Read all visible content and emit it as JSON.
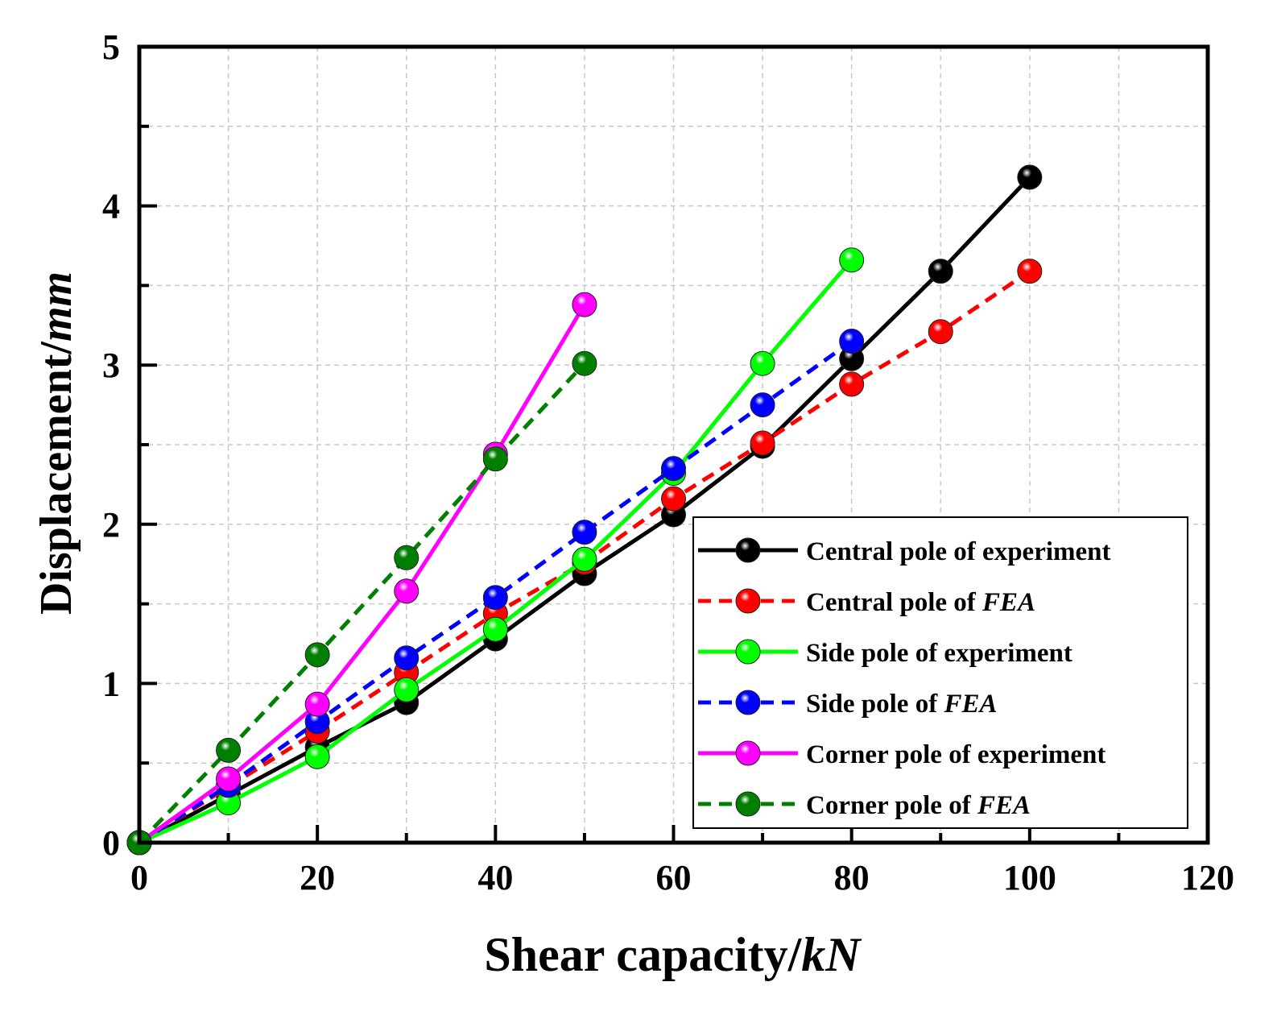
{
  "chart_data": {
    "type": "line",
    "xlabel": {
      "main": "Shear capacity/",
      "italic": "kN"
    },
    "ylabel": {
      "main": "Displacement/",
      "italic": "mm"
    },
    "xlim": [
      0,
      120
    ],
    "ylim": [
      0,
      5
    ],
    "x_ticks": [
      "0",
      "20",
      "40",
      "60",
      "80",
      "100",
      "120"
    ],
    "y_ticks": [
      "0",
      "1",
      "2",
      "3",
      "4",
      "5"
    ],
    "grid": true,
    "legend_position": "bottom-right",
    "series": [
      {
        "name": {
          "main": "Central pole of experiment",
          "italic": ""
        },
        "color": "#000000",
        "dashed": false,
        "x": [
          0,
          10,
          20,
          30,
          40,
          50,
          60,
          70,
          80,
          90,
          100
        ],
        "y": [
          0,
          0.3,
          0.6,
          0.88,
          1.28,
          1.69,
          2.06,
          2.49,
          3.04,
          3.59,
          4.18
        ]
      },
      {
        "name": {
          "main": "Central pole of ",
          "italic": "FEA"
        },
        "color": "#ff0000",
        "dashed": true,
        "x": [
          0,
          10,
          20,
          30,
          40,
          50,
          60,
          70,
          80,
          90,
          100
        ],
        "y": [
          0,
          0.35,
          0.7,
          1.07,
          1.44,
          1.76,
          2.16,
          2.51,
          2.88,
          3.21,
          3.59
        ]
      },
      {
        "name": {
          "main": "Side pole of experiment",
          "italic": ""
        },
        "color": "#00ff00",
        "dashed": false,
        "x": [
          0,
          10,
          20,
          30,
          40,
          50,
          60,
          70,
          80
        ],
        "y": [
          0,
          0.25,
          0.54,
          0.96,
          1.34,
          1.78,
          2.32,
          3.01,
          3.66
        ]
      },
      {
        "name": {
          "main": "Side pole of ",
          "italic": "FEA"
        },
        "color": "#0000ff",
        "dashed": true,
        "x": [
          0,
          10,
          20,
          30,
          40,
          50,
          60,
          70,
          80
        ],
        "y": [
          0,
          0.36,
          0.76,
          1.16,
          1.54,
          1.95,
          2.35,
          2.75,
          3.15
        ]
      },
      {
        "name": {
          "main": "Corner pole of experiment",
          "italic": ""
        },
        "color": "#ff00ff",
        "dashed": false,
        "x": [
          0,
          10,
          20,
          30,
          40,
          50
        ],
        "y": [
          0,
          0.4,
          0.87,
          1.58,
          2.44,
          3.38
        ]
      },
      {
        "name": {
          "main": "Corner pole of ",
          "italic": "FEA"
        },
        "color": "#008000",
        "dashed": true,
        "x": [
          0,
          10,
          20,
          30,
          40,
          50
        ],
        "y": [
          0,
          0.58,
          1.18,
          1.79,
          2.41,
          3.01
        ]
      }
    ]
  }
}
